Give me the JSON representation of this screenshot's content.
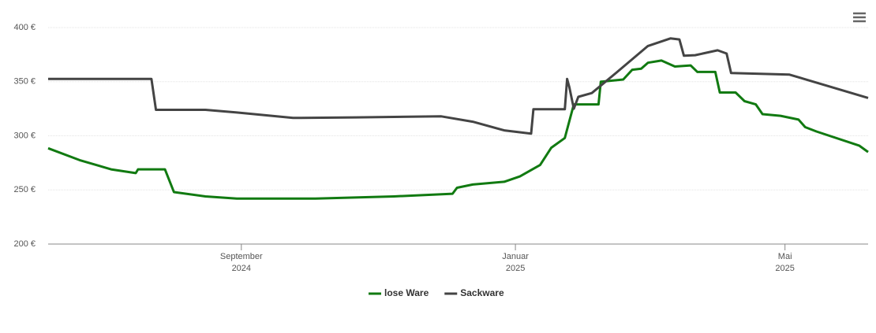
{
  "chart_data": {
    "type": "line",
    "series": [
      {
        "name": "lose Ware",
        "color": "#117a11",
        "x": [
          "2024-06-07",
          "2024-06-21",
          "2024-07-05",
          "2024-07-16",
          "2024-07-17",
          "2024-07-29",
          "2024-08-02",
          "2024-08-16",
          "2024-08-30",
          "2024-10-04",
          "2024-11-08",
          "2024-12-04",
          "2024-12-06",
          "2024-12-13",
          "2024-12-27",
          "2025-01-03",
          "2025-01-12",
          "2025-01-17",
          "2025-01-23",
          "2025-01-27",
          "2025-02-07",
          "2025-02-08",
          "2025-02-18",
          "2025-02-22",
          "2025-02-26",
          "2025-03-01",
          "2025-03-07",
          "2025-03-13",
          "2025-03-20",
          "2025-03-23",
          "2025-03-31",
          "2025-04-02",
          "2025-04-09",
          "2025-04-13",
          "2025-04-18",
          "2025-04-21",
          "2025-04-29",
          "2025-05-07",
          "2025-05-10",
          "2025-05-15",
          "2025-06-03",
          "2025-06-07"
        ],
        "values": [
          288.5,
          277.5,
          269,
          265.5,
          269,
          269,
          248,
          244,
          242,
          242,
          244,
          246.5,
          252,
          255,
          257.5,
          262.5,
          273,
          289,
          298,
          329,
          329,
          350,
          352,
          361,
          362,
          367.5,
          369.5,
          364,
          365,
          359,
          359,
          340,
          340,
          332,
          329,
          320,
          318.5,
          315,
          308,
          304,
          291,
          285
        ]
      },
      {
        "name": "Sackware",
        "color": "#444444",
        "x": [
          "2024-06-07",
          "2024-07-23",
          "2024-07-25",
          "2024-08-16",
          "2024-08-30",
          "2024-09-24",
          "2024-10-22",
          "2024-11-29",
          "2024-12-13",
          "2024-12-27",
          "2025-01-08",
          "2025-01-09",
          "2025-01-23",
          "2025-01-24",
          "2025-01-25",
          "2025-01-27",
          "2025-01-29",
          "2025-02-04",
          "2025-02-15",
          "2025-03-01",
          "2025-03-11",
          "2025-03-15",
          "2025-03-17",
          "2025-03-22",
          "2025-04-01",
          "2025-04-05",
          "2025-04-07",
          "2025-05-03",
          "2025-06-07"
        ],
        "values": [
          352.5,
          352.5,
          324,
          324,
          321.5,
          316.5,
          317,
          318,
          313,
          305,
          302,
          324.5,
          324.5,
          352.5,
          345,
          325,
          336,
          339.5,
          358.5,
          383,
          390,
          389,
          374,
          374.5,
          379,
          376,
          358,
          356.5,
          335
        ]
      }
    ],
    "xlim": [
      "2024-06-07",
      "2025-06-07"
    ],
    "xticks": [
      {
        "value": "2024-09-01",
        "label": [
          "September",
          "2024"
        ]
      },
      {
        "value": "2025-01-01",
        "label": [
          "Januar",
          "2025"
        ]
      },
      {
        "value": "2025-05-01",
        "label": [
          "Mai",
          "2025"
        ]
      }
    ],
    "ylim": [
      200,
      400
    ],
    "yticks": [
      {
        "value": 200,
        "label": "200 €"
      },
      {
        "value": 250,
        "label": "250 €"
      },
      {
        "value": 300,
        "label": "300 €"
      },
      {
        "value": 350,
        "label": "350 €"
      },
      {
        "value": 400,
        "label": "400 €"
      }
    ],
    "grid": true,
    "legend": "bottom"
  }
}
